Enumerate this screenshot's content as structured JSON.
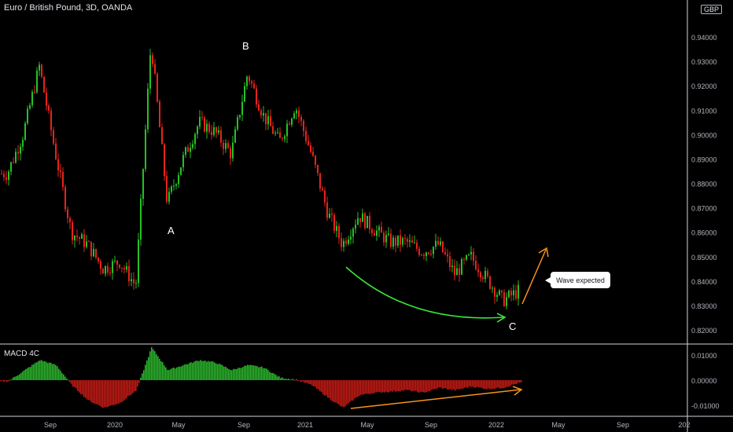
{
  "header": {
    "title": "Euro / British Pound, 3D, OANDA",
    "currency_badge": "GBP"
  },
  "macd_panel": {
    "title": "MACD 4C"
  },
  "annotations": {
    "wave_labels": [
      "A",
      "B",
      "C"
    ],
    "callout_text": "Wave expected"
  },
  "colors": {
    "up": "#26c126",
    "down": "#e8231c",
    "arrow_green": "#39e639",
    "arrow_orange": "#f7931a",
    "axis_text": "#b2b5be",
    "separator": "#d1d4dc"
  },
  "chart_data": [
    {
      "type": "candlestick",
      "title": "Euro / British Pound, 3D, OANDA",
      "y_axis": {
        "label": "GBP",
        "range": [
          0.815,
          0.955
        ],
        "ticks": [
          "0.94000",
          "0.93000",
          "0.92000",
          "0.91000",
          "0.90000",
          "0.89000",
          "0.88000",
          "0.87000",
          "0.86000",
          "0.85000",
          "0.84000",
          "0.83000",
          "0.82000"
        ]
      },
      "x_axis": {
        "ticks": [
          "Sep",
          "2020",
          "May",
          "Sep",
          "2021",
          "May",
          "Sep",
          "2022",
          "May",
          "Sep",
          "202"
        ]
      },
      "approx_closes": [
        {
          "date": "2019-06",
          "close": 0.884
        },
        {
          "date": "2019-07",
          "close": 0.9
        },
        {
          "date": "2019-08",
          "close": 0.928
        },
        {
          "date": "2019-09",
          "close": 0.892
        },
        {
          "date": "2019-10",
          "close": 0.86
        },
        {
          "date": "2019-11",
          "close": 0.855
        },
        {
          "date": "2019-12",
          "close": 0.845
        },
        {
          "date": "2020-01",
          "close": 0.848
        },
        {
          "date": "2020-02",
          "close": 0.838
        },
        {
          "date": "2020-03",
          "close": 0.938
        },
        {
          "date": "2020-04",
          "close": 0.872
        },
        {
          "date": "2020-05",
          "close": 0.89
        },
        {
          "date": "2020-06",
          "close": 0.905
        },
        {
          "date": "2020-07",
          "close": 0.901
        },
        {
          "date": "2020-08",
          "close": 0.892
        },
        {
          "date": "2020-09",
          "close": 0.925
        },
        {
          "date": "2020-10",
          "close": 0.908
        },
        {
          "date": "2020-11",
          "close": 0.897
        },
        {
          "date": "2020-12",
          "close": 0.912
        },
        {
          "date": "2021-01",
          "close": 0.892
        },
        {
          "date": "2021-02",
          "close": 0.868
        },
        {
          "date": "2021-03",
          "close": 0.855
        },
        {
          "date": "2021-04",
          "close": 0.867
        },
        {
          "date": "2021-05",
          "close": 0.861
        },
        {
          "date": "2021-06",
          "close": 0.856
        },
        {
          "date": "2021-07",
          "close": 0.856
        },
        {
          "date": "2021-08",
          "close": 0.852
        },
        {
          "date": "2021-09",
          "close": 0.855
        },
        {
          "date": "2021-10",
          "close": 0.843
        },
        {
          "date": "2021-11",
          "close": 0.85
        },
        {
          "date": "2021-12",
          "close": 0.841
        },
        {
          "date": "2022-01",
          "close": 0.832
        },
        {
          "date": "2022-02",
          "close": 0.836
        }
      ]
    },
    {
      "type": "bar",
      "title": "MACD 4C",
      "y_axis": {
        "ticks": [
          "0.01000",
          "0.00000",
          "-0.01000"
        ],
        "range": [
          -0.012,
          0.0135
        ]
      },
      "approx_histogram": [
        {
          "date": "2019-06",
          "value": -0.0005
        },
        {
          "date": "2019-08",
          "value": 0.008
        },
        {
          "date": "2019-09",
          "value": 0.006
        },
        {
          "date": "2019-10",
          "value": -0.002
        },
        {
          "date": "2019-11",
          "value": -0.008
        },
        {
          "date": "2019-12",
          "value": -0.011
        },
        {
          "date": "2020-01",
          "value": -0.009
        },
        {
          "date": "2020-02",
          "value": -0.004
        },
        {
          "date": "2020-03",
          "value": 0.013
        },
        {
          "date": "2020-04",
          "value": 0.004
        },
        {
          "date": "2020-05",
          "value": 0.006
        },
        {
          "date": "2020-06",
          "value": 0.008
        },
        {
          "date": "2020-07",
          "value": 0.007
        },
        {
          "date": "2020-08",
          "value": 0.004
        },
        {
          "date": "2020-09",
          "value": 0.006
        },
        {
          "date": "2020-10",
          "value": 0.005
        },
        {
          "date": "2020-11",
          "value": 0.001
        },
        {
          "date": "2020-12",
          "value": 0.0002
        },
        {
          "date": "2021-01",
          "value": -0.002
        },
        {
          "date": "2021-02",
          "value": -0.007
        },
        {
          "date": "2021-03",
          "value": -0.011
        },
        {
          "date": "2021-04",
          "value": -0.006
        },
        {
          "date": "2021-05",
          "value": -0.005
        },
        {
          "date": "2021-06",
          "value": -0.0045
        },
        {
          "date": "2021-07",
          "value": -0.004
        },
        {
          "date": "2021-08",
          "value": -0.005
        },
        {
          "date": "2021-09",
          "value": -0.003
        },
        {
          "date": "2021-10",
          "value": -0.004
        },
        {
          "date": "2021-11",
          "value": -0.0025
        },
        {
          "date": "2021-12",
          "value": -0.0035
        },
        {
          "date": "2022-01",
          "value": -0.003
        },
        {
          "date": "2022-02",
          "value": -0.001
        }
      ]
    }
  ]
}
